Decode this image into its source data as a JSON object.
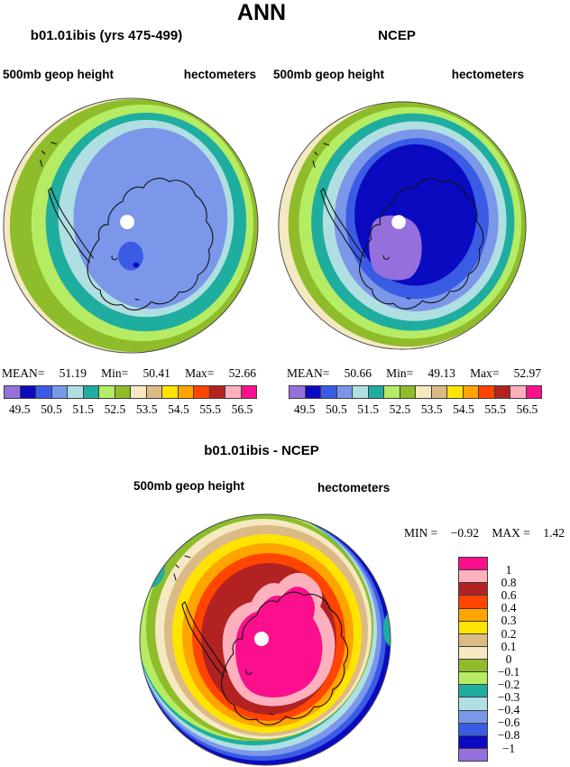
{
  "title": "ANN",
  "palette": {
    "purple": "#9570dc",
    "darkblue": "#0a0ac0",
    "royal": "#3a5ce4",
    "cornflower": "#7b97ea",
    "palecyan": "#b0dfe2",
    "teal": "#1fada0",
    "lightgreen": "#b5ec63",
    "olive": "#8fbc2a",
    "cream": "#f5e9c2",
    "tan": "#dcba86",
    "yellow": "#ffe400",
    "orange": "#ffa400",
    "redorange": "#ff4500",
    "darkred": "#b22222",
    "pink": "#ffb0bd",
    "magenta": "#fb0f8d"
  },
  "panels": {
    "left": {
      "title": "b01.01ibis (yrs 475-499)",
      "field_label": "500mb geop height",
      "units_label": "hectometers",
      "stats": {
        "mean_label": "MEAN=",
        "mean": "51.19",
        "min_label": "Min=",
        "min": "50.41",
        "max_label": "Max=",
        "max": "52.66"
      },
      "colorbar": {
        "cells": [
          "purple",
          "darkblue",
          "royal",
          "cornflower",
          "palecyan",
          "teal",
          "lightgreen",
          "olive",
          "cream",
          "tan",
          "yellow",
          "orange",
          "redorange",
          "darkred",
          "pink",
          "magenta"
        ],
        "ticks": [
          "49.5",
          "50.5",
          "51.5",
          "52.5",
          "53.5",
          "54.5",
          "55.5",
          "56.5"
        ]
      }
    },
    "right": {
      "title": "NCEP",
      "field_label": "500mb geop height",
      "units_label": "hectometers",
      "stats": {
        "mean_label": "MEAN=",
        "mean": "50.66",
        "min_label": "Min=",
        "min": "49.13",
        "max_label": "Max=",
        "max": "52.97"
      },
      "colorbar": {
        "cells": [
          "purple",
          "darkblue",
          "royal",
          "cornflower",
          "palecyan",
          "teal",
          "lightgreen",
          "olive",
          "cream",
          "tan",
          "yellow",
          "orange",
          "redorange",
          "darkred",
          "pink",
          "magenta"
        ],
        "ticks": [
          "49.5",
          "50.5",
          "51.5",
          "52.5",
          "53.5",
          "54.5",
          "55.5",
          "56.5"
        ]
      }
    },
    "diff": {
      "title": "b01.01ibis - NCEP",
      "field_label": "500mb geop height",
      "units_label": "hectometers",
      "stats": {
        "min_label": "MIN =",
        "min": "−0.92",
        "max_label": "MAX =",
        "max": "1.42"
      },
      "colorbar": {
        "cells": [
          "magenta",
          "pink",
          "darkred",
          "redorange",
          "orange",
          "yellow",
          "tan",
          "cream",
          "olive",
          "lightgreen",
          "teal",
          "palecyan",
          "cornflower",
          "royal",
          "darkblue",
          "purple"
        ],
        "ticks": [
          "1",
          "0.8",
          "0.6",
          "0.4",
          "0.3",
          "0.2",
          "0.1",
          "0",
          "−0.1",
          "−0.2",
          "−0.3",
          "−0.4",
          "−0.6",
          "−0.8",
          "−1"
        ]
      }
    }
  },
  "chart_data": [
    {
      "type": "heatmap",
      "subtype": "filled-contour-map",
      "panel": "top-left",
      "title": "b01.01ibis (yrs 475-499)",
      "variable": "500mb geop height",
      "units": "hectometers",
      "projection": "south polar stereographic",
      "region": "Antarctica",
      "mean": 51.19,
      "min": 50.41,
      "max": 52.66,
      "contour_levels": [
        49.5,
        50,
        50.5,
        51,
        51.5,
        52,
        52.5,
        53,
        53.5,
        54,
        54.5,
        55,
        55.5,
        56,
        56.5
      ],
      "band_colors_low_to_high": [
        "purple",
        "darkblue",
        "royal",
        "cornflower",
        "palecyan",
        "teal",
        "lightgreen",
        "olive",
        "cream",
        "tan",
        "yellow",
        "orange",
        "redorange",
        "darkred",
        "pink",
        "magenta"
      ],
      "description": "Interior of map mostly 50.5-51 hm (cornflower blue) over Antarctica with small 50-50.5 patch near pole; values increase outward to 52.5-53 hm (olive) at the map edge"
    },
    {
      "type": "heatmap",
      "subtype": "filled-contour-map",
      "panel": "top-right",
      "title": "NCEP",
      "variable": "500mb geop height",
      "units": "hectometers",
      "projection": "south polar stereographic",
      "region": "Antarctica",
      "mean": 50.66,
      "min": 49.13,
      "max": 52.97,
      "contour_levels": [
        49.5,
        50,
        50.5,
        51,
        51.5,
        52,
        52.5,
        53,
        53.5,
        54,
        54.5,
        55,
        55.5,
        56,
        56.5
      ],
      "band_colors_low_to_high": [
        "purple",
        "darkblue",
        "royal",
        "cornflower",
        "palecyan",
        "teal",
        "lightgreen",
        "olive",
        "cream",
        "tan",
        "yellow",
        "orange",
        "redorange",
        "darkred",
        "pink",
        "magenta"
      ],
      "description": "Deep minimum below 49.5 hm (purple) near the pole surrounded by 49.5-50 hm (dark blue), rising outward to 53-53.5 hm (cream) at the map edge"
    },
    {
      "type": "heatmap",
      "subtype": "filled-contour-difference-map",
      "panel": "bottom",
      "title": "b01.01ibis - NCEP",
      "variable": "500mb geop height",
      "units": "hectometers",
      "projection": "south polar stereographic",
      "region": "Antarctica",
      "min": -0.92,
      "max": 1.42,
      "contour_levels": [
        -1,
        -0.8,
        -0.6,
        -0.4,
        -0.3,
        -0.2,
        -0.1,
        0,
        0.1,
        0.2,
        0.3,
        0.4,
        0.6,
        0.8,
        1
      ],
      "band_colors_high_to_low": [
        "magenta",
        "pink",
        "darkred",
        "redorange",
        "orange",
        "yellow",
        "tan",
        "cream",
        "olive",
        "lightgreen",
        "teal",
        "palecyan",
        "cornflower",
        "royal",
        "darkblue",
        "purple"
      ],
      "description": "Positive difference above 1 hm (magenta) centered over Antarctica decreasing outward through warm colors to near zero, with negative values down to -0.8 hm (blues) at the bottom-right map edge"
    }
  ]
}
